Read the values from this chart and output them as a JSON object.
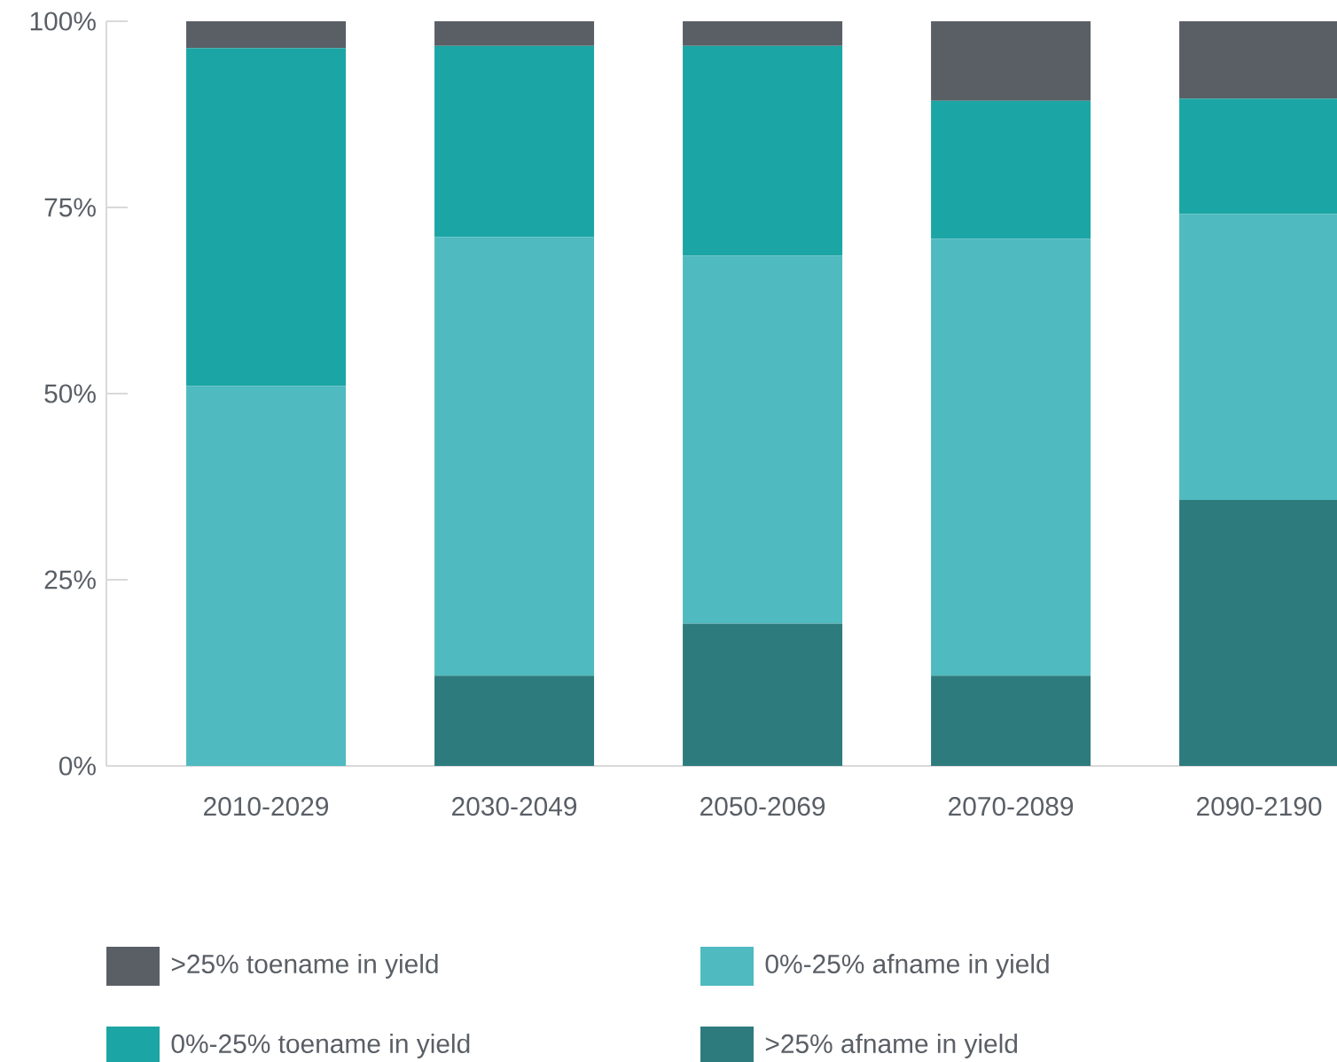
{
  "chart_data": {
    "type": "bar",
    "stacked": true,
    "categories": [
      "2010-2029",
      "2030-2049",
      "2050-2069",
      "2070-2089",
      "2090-2190"
    ],
    "series": [
      {
        "name": ">25% afname in yield",
        "color": "#2e7b7d",
        "values": [
          0,
          12.1,
          19.1,
          12.1,
          35.7
        ]
      },
      {
        "name": "0%-25% afname in yield",
        "color": "#4fbac0",
        "values": [
          51.0,
          58.9,
          49.4,
          58.7,
          38.4
        ]
      },
      {
        "name": "0%-25% toename in yield",
        "color": "#1ba5a4",
        "values": [
          45.4,
          25.7,
          28.2,
          18.5,
          15.5
        ]
      },
      {
        "name": ">25% toename in yield",
        "color": "#5a5f66",
        "values": [
          3.6,
          3.3,
          3.3,
          10.7,
          10.4
        ]
      }
    ],
    "ylim": [
      0,
      100
    ],
    "yticks": [
      {
        "value": 0,
        "label": "0%"
      },
      {
        "value": 25,
        "label": "25%"
      },
      {
        "value": 50,
        "label": "50%"
      },
      {
        "value": 75,
        "label": "75%"
      },
      {
        "value": 100,
        "label": "100%"
      }
    ],
    "grid": false,
    "legend": "bottom"
  }
}
